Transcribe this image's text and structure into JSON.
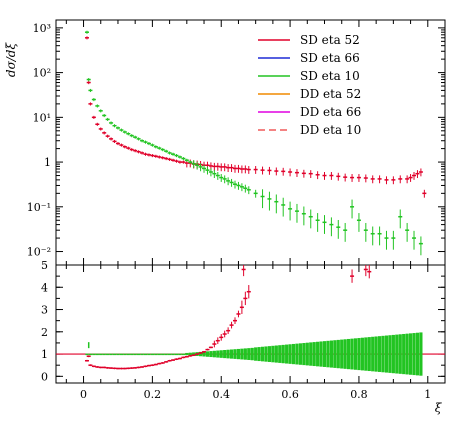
{
  "chart_data": [
    {
      "type": "scatter",
      "panel": "main",
      "ylabel": "dσ/dξ",
      "yscale": "log",
      "ylim": [
        0.005,
        1500
      ],
      "xlim": [
        -0.08,
        1.05
      ],
      "yticks": [
        {
          "value": 0.01,
          "label": "10⁻²"
        },
        {
          "value": 0.1,
          "label": "10⁻¹"
        },
        {
          "value": 1,
          "label": "1"
        },
        {
          "value": 10,
          "label": "10¹"
        },
        {
          "value": 100,
          "label": "10²"
        },
        {
          "value": 1000,
          "label": "10³"
        }
      ],
      "legend_position": "top-right",
      "legend": [
        {
          "name": "SD eta 52",
          "color": "#e0002a",
          "dash": "solid"
        },
        {
          "name": "SD eta 66",
          "color": "#1f2bd6",
          "dash": "solid"
        },
        {
          "name": "SD eta 10",
          "color": "#22c422",
          "dash": "solid"
        },
        {
          "name": "DD eta 52",
          "color": "#f08a00",
          "dash": "solid"
        },
        {
          "name": "DD eta 66",
          "color": "#e000e0",
          "dash": "solid"
        },
        {
          "name": "DD eta 10",
          "color": "#f05a5a",
          "dash": "dashed"
        }
      ],
      "series": [
        {
          "name": "SD eta 52",
          "color": "#e0002a",
          "points": [
            [
              0.01,
              600
            ],
            [
              0.015,
              60
            ],
            [
              0.02,
              20
            ],
            [
              0.03,
              10
            ],
            [
              0.04,
              7
            ],
            [
              0.05,
              5.5
            ],
            [
              0.06,
              4.5
            ],
            [
              0.07,
              3.8
            ],
            [
              0.08,
              3.3
            ],
            [
              0.09,
              2.9
            ],
            [
              0.1,
              2.6
            ],
            [
              0.11,
              2.4
            ],
            [
              0.12,
              2.2
            ],
            [
              0.13,
              2.05
            ],
            [
              0.14,
              1.9
            ],
            [
              0.15,
              1.8
            ],
            [
              0.16,
              1.7
            ],
            [
              0.17,
              1.6
            ],
            [
              0.18,
              1.5
            ],
            [
              0.19,
              1.45
            ],
            [
              0.2,
              1.4
            ],
            [
              0.21,
              1.35
            ],
            [
              0.22,
              1.3
            ],
            [
              0.23,
              1.25
            ],
            [
              0.24,
              1.2
            ],
            [
              0.25,
              1.15
            ],
            [
              0.26,
              1.1
            ],
            [
              0.27,
              1.05
            ],
            [
              0.28,
              1.0
            ],
            [
              0.29,
              1.0
            ],
            [
              0.3,
              0.95
            ],
            [
              0.31,
              0.95
            ],
            [
              0.32,
              0.9
            ],
            [
              0.33,
              0.9
            ],
            [
              0.34,
              0.88
            ],
            [
              0.35,
              0.85
            ],
            [
              0.36,
              0.85
            ],
            [
              0.37,
              0.82
            ],
            [
              0.38,
              0.8
            ],
            [
              0.39,
              0.8
            ],
            [
              0.4,
              0.78
            ],
            [
              0.41,
              0.78
            ],
            [
              0.42,
              0.75
            ],
            [
              0.43,
              0.75
            ],
            [
              0.44,
              0.72
            ],
            [
              0.45,
              0.72
            ],
            [
              0.46,
              0.7
            ],
            [
              0.47,
              0.7
            ],
            [
              0.48,
              0.68
            ],
            [
              0.5,
              0.68
            ],
            [
              0.52,
              0.66
            ],
            [
              0.54,
              0.65
            ],
            [
              0.56,
              0.63
            ],
            [
              0.58,
              0.62
            ],
            [
              0.6,
              0.6
            ],
            [
              0.62,
              0.58
            ],
            [
              0.64,
              0.56
            ],
            [
              0.66,
              0.55
            ],
            [
              0.68,
              0.52
            ],
            [
              0.7,
              0.5
            ],
            [
              0.72,
              0.5
            ],
            [
              0.74,
              0.48
            ],
            [
              0.76,
              0.46
            ],
            [
              0.78,
              0.45
            ],
            [
              0.8,
              0.45
            ],
            [
              0.82,
              0.44
            ],
            [
              0.84,
              0.42
            ],
            [
              0.86,
              0.42
            ],
            [
              0.88,
              0.4
            ],
            [
              0.9,
              0.4
            ],
            [
              0.92,
              0.42
            ],
            [
              0.94,
              0.42
            ],
            [
              0.95,
              0.45
            ],
            [
              0.96,
              0.5
            ],
            [
              0.97,
              0.55
            ],
            [
              0.98,
              0.6
            ],
            [
              0.99,
              0.2
            ]
          ]
        },
        {
          "name": "SD eta 10",
          "color": "#22c422",
          "points": [
            [
              0.01,
              800
            ],
            [
              0.015,
              70
            ],
            [
              0.02,
              40
            ],
            [
              0.03,
              25
            ],
            [
              0.04,
              18
            ],
            [
              0.05,
              14
            ],
            [
              0.06,
              11
            ],
            [
              0.07,
              9
            ],
            [
              0.08,
              7.5
            ],
            [
              0.09,
              6.5
            ],
            [
              0.1,
              5.8
            ],
            [
              0.11,
              5.2
            ],
            [
              0.12,
              4.7
            ],
            [
              0.13,
              4.3
            ],
            [
              0.14,
              3.9
            ],
            [
              0.15,
              3.6
            ],
            [
              0.16,
              3.3
            ],
            [
              0.17,
              3.0
            ],
            [
              0.18,
              2.8
            ],
            [
              0.19,
              2.6
            ],
            [
              0.2,
              2.4
            ],
            [
              0.21,
              2.2
            ],
            [
              0.22,
              2.05
            ],
            [
              0.23,
              1.9
            ],
            [
              0.24,
              1.75
            ],
            [
              0.25,
              1.6
            ],
            [
              0.26,
              1.5
            ],
            [
              0.27,
              1.4
            ],
            [
              0.28,
              1.3
            ],
            [
              0.29,
              1.2
            ],
            [
              0.3,
              1.1
            ],
            [
              0.31,
              1.0
            ],
            [
              0.32,
              0.92
            ],
            [
              0.33,
              0.85
            ],
            [
              0.34,
              0.78
            ],
            [
              0.35,
              0.72
            ],
            [
              0.36,
              0.66
            ],
            [
              0.37,
              0.6
            ],
            [
              0.38,
              0.55
            ],
            [
              0.39,
              0.5
            ],
            [
              0.4,
              0.45
            ],
            [
              0.41,
              0.42
            ],
            [
              0.42,
              0.38
            ],
            [
              0.43,
              0.35
            ],
            [
              0.44,
              0.32
            ],
            [
              0.45,
              0.3
            ],
            [
              0.46,
              0.28
            ],
            [
              0.47,
              0.26
            ],
            [
              0.48,
              0.24
            ],
            [
              0.5,
              0.2
            ],
            [
              0.52,
              0.17
            ],
            [
              0.54,
              0.15
            ],
            [
              0.56,
              0.13
            ],
            [
              0.58,
              0.11
            ],
            [
              0.6,
              0.09
            ],
            [
              0.62,
              0.08
            ],
            [
              0.64,
              0.07
            ],
            [
              0.66,
              0.06
            ],
            [
              0.68,
              0.05
            ],
            [
              0.7,
              0.045
            ],
            [
              0.72,
              0.04
            ],
            [
              0.74,
              0.035
            ],
            [
              0.76,
              0.03
            ],
            [
              0.78,
              0.1
            ],
            [
              0.8,
              0.05
            ],
            [
              0.82,
              0.03
            ],
            [
              0.84,
              0.025
            ],
            [
              0.86,
              0.025
            ],
            [
              0.88,
              0.02
            ],
            [
              0.9,
              0.02
            ],
            [
              0.92,
              0.06
            ],
            [
              0.94,
              0.03
            ],
            [
              0.96,
              0.02
            ],
            [
              0.98,
              0.015
            ]
          ]
        }
      ]
    },
    {
      "type": "scatter",
      "panel": "ratio",
      "xlabel": "ξ",
      "xlim": [
        -0.08,
        1.05
      ],
      "ylim": [
        -0.3,
        5
      ],
      "xticks": [
        {
          "value": 0,
          "label": "0"
        },
        {
          "value": 0.2,
          "label": "0.2"
        },
        {
          "value": 0.4,
          "label": "0.4"
        },
        {
          "value": 0.6,
          "label": "0.6"
        },
        {
          "value": 0.8,
          "label": "0.8"
        },
        {
          "value": 1,
          "label": "1"
        }
      ],
      "yticks": [
        {
          "value": 0,
          "label": "0"
        },
        {
          "value": 1,
          "label": "1"
        },
        {
          "value": 2,
          "label": "2"
        },
        {
          "value": 3,
          "label": "3"
        },
        {
          "value": 4,
          "label": "4"
        },
        {
          "value": 5,
          "label": "5"
        }
      ],
      "reference_line": {
        "value": 1,
        "color": "#e0002a"
      },
      "series": [
        {
          "name": "SD eta 52",
          "color": "#e0002a",
          "points": [
            [
              0.01,
              0.7
            ],
            [
              0.015,
              0.9
            ],
            [
              0.02,
              0.5
            ],
            [
              0.03,
              0.45
            ],
            [
              0.04,
              0.42
            ],
            [
              0.05,
              0.4
            ],
            [
              0.06,
              0.4
            ],
            [
              0.07,
              0.38
            ],
            [
              0.08,
              0.37
            ],
            [
              0.09,
              0.36
            ],
            [
              0.1,
              0.35
            ],
            [
              0.11,
              0.35
            ],
            [
              0.12,
              0.35
            ],
            [
              0.13,
              0.36
            ],
            [
              0.14,
              0.37
            ],
            [
              0.15,
              0.38
            ],
            [
              0.16,
              0.4
            ],
            [
              0.17,
              0.42
            ],
            [
              0.18,
              0.45
            ],
            [
              0.19,
              0.48
            ],
            [
              0.2,
              0.5
            ],
            [
              0.21,
              0.53
            ],
            [
              0.22,
              0.57
            ],
            [
              0.23,
              0.6
            ],
            [
              0.24,
              0.65
            ],
            [
              0.25,
              0.7
            ],
            [
              0.26,
              0.73
            ],
            [
              0.27,
              0.77
            ],
            [
              0.28,
              0.8
            ],
            [
              0.29,
              0.85
            ],
            [
              0.3,
              0.88
            ],
            [
              0.31,
              0.92
            ],
            [
              0.32,
              0.95
            ],
            [
              0.33,
              1.0
            ],
            [
              0.34,
              1.05
            ],
            [
              0.35,
              1.1
            ],
            [
              0.36,
              1.2
            ],
            [
              0.37,
              1.3
            ],
            [
              0.38,
              1.45
            ],
            [
              0.39,
              1.6
            ],
            [
              0.4,
              1.75
            ],
            [
              0.41,
              1.9
            ],
            [
              0.42,
              2.05
            ],
            [
              0.43,
              2.3
            ],
            [
              0.44,
              2.5
            ],
            [
              0.45,
              2.8
            ],
            [
              0.46,
              3.1
            ],
            [
              0.47,
              3.5
            ],
            [
              0.48,
              3.8
            ],
            [
              0.465,
              4.8
            ],
            [
              0.78,
              4.5
            ],
            [
              0.82,
              4.8
            ],
            [
              0.83,
              4.7
            ]
          ]
        },
        {
          "name": "SD eta 10",
          "color": "#22c422",
          "points": [
            [
              0.01,
              1.0
            ],
            [
              0.015,
              1.4
            ],
            [
              0.05,
              1.0
            ],
            [
              0.1,
              1.0
            ],
            [
              0.15,
              1.0
            ],
            [
              0.2,
              1.0
            ],
            [
              0.25,
              1.0
            ],
            [
              0.3,
              1.0
            ],
            [
              0.35,
              1.0
            ],
            [
              0.4,
              1.0
            ],
            [
              0.45,
              1.0
            ],
            [
              0.5,
              1.0
            ],
            [
              0.55,
              1.0
            ],
            [
              0.6,
              1.0
            ],
            [
              0.65,
              1.0
            ],
            [
              0.7,
              1.0
            ],
            [
              0.75,
              1.0
            ],
            [
              0.8,
              1.0
            ],
            [
              0.85,
              1.0
            ],
            [
              0.9,
              1.0
            ],
            [
              0.95,
              1.0
            ],
            [
              0.99,
              1.0
            ]
          ]
        }
      ]
    }
  ]
}
